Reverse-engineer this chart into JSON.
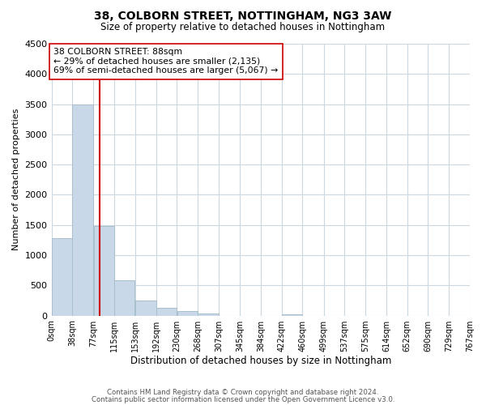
{
  "title": "38, COLBORN STREET, NOTTINGHAM, NG3 3AW",
  "subtitle": "Size of property relative to detached houses in Nottingham",
  "xlabel": "Distribution of detached houses by size in Nottingham",
  "ylabel": "Number of detached properties",
  "bar_color": "#c8d8e8",
  "bar_edge_color": "#a8bfcc",
  "vline_color": "#cc0000",
  "vline_x": 88,
  "bin_edges": [
    0,
    38,
    77,
    115,
    153,
    192,
    230,
    268,
    307,
    345,
    384,
    422,
    460,
    499,
    537,
    575,
    614,
    652,
    690,
    729,
    767
  ],
  "bar_heights": [
    1280,
    3500,
    1480,
    580,
    245,
    130,
    75,
    30,
    0,
    0,
    0,
    20,
    0,
    0,
    0,
    0,
    0,
    0,
    0,
    0
  ],
  "tick_labels": [
    "0sqm",
    "38sqm",
    "77sqm",
    "115sqm",
    "153sqm",
    "192sqm",
    "230sqm",
    "268sqm",
    "307sqm",
    "345sqm",
    "384sqm",
    "422sqm",
    "460sqm",
    "499sqm",
    "537sqm",
    "575sqm",
    "614sqm",
    "652sqm",
    "690sqm",
    "729sqm",
    "767sqm"
  ],
  "ylim": [
    0,
    4500
  ],
  "yticks": [
    0,
    500,
    1000,
    1500,
    2000,
    2500,
    3000,
    3500,
    4000,
    4500
  ],
  "annotation_line1": "38 COLBORN STREET: 88sqm",
  "annotation_line2": "← 29% of detached houses are smaller (2,135)",
  "annotation_line3": "69% of semi-detached houses are larger (5,067) →",
  "footnote1": "Contains HM Land Registry data © Crown copyright and database right 2024.",
  "footnote2": "Contains public sector information licensed under the Open Government Licence v3.0.",
  "bg_color": "#ffffff",
  "grid_color": "#ccd8e0"
}
